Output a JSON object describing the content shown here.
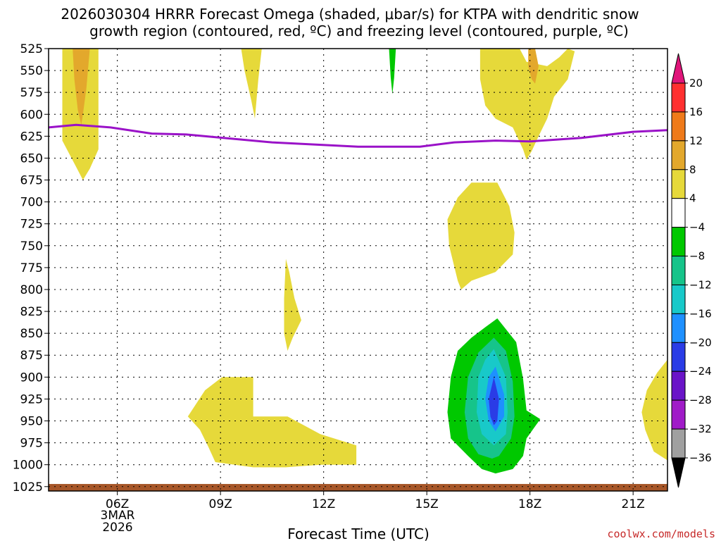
{
  "chart_data": {
    "type": "time-height contour",
    "title_line1": "2026030304 HRRR Forecast Omega (shaded, μbar/s) for KTPA with dendritic snow",
    "title_line2": "growth region (contoured, red, ºC) and freezing level (contoured, purple, ºC)",
    "xlabel": "Forecast Time (UTC)",
    "date_label": [
      "3MAR",
      "2026"
    ],
    "credit": "coolwx.com/models",
    "xlim": [
      4,
      22
    ],
    "ylim": [
      1030,
      525
    ],
    "y_ticks": [
      525,
      550,
      575,
      600,
      625,
      650,
      675,
      700,
      725,
      750,
      775,
      800,
      825,
      850,
      875,
      900,
      925,
      950,
      975,
      1000,
      1025
    ],
    "x_ticks": [
      {
        "value": 6,
        "label": "06Z"
      },
      {
        "value": 9,
        "label": "09Z"
      },
      {
        "value": 12,
        "label": "12Z"
      },
      {
        "value": 15,
        "label": "15Z"
      },
      {
        "value": 18,
        "label": "18Z"
      },
      {
        "value": 21,
        "label": "21Z"
      }
    ],
    "colorbar": {
      "labels": [
        20,
        16,
        12,
        8,
        4,
        -4,
        -8,
        -12,
        -16,
        -20,
        -24,
        -28,
        -32,
        -36
      ],
      "bands": [
        {
          "color": "#ff3030",
          "range": [
            16,
            20
          ]
        },
        {
          "color": "#ef7a1a",
          "range": [
            12,
            16
          ]
        },
        {
          "color": "#e3a82c",
          "range": [
            8,
            12
          ]
        },
        {
          "color": "#e6d93a",
          "range": [
            4,
            8
          ]
        },
        {
          "color": "#ffffff",
          "range": [
            -4,
            4
          ]
        },
        {
          "color": "#00c800",
          "range": [
            -8,
            -4
          ]
        },
        {
          "color": "#16c48a",
          "range": [
            -12,
            -8
          ]
        },
        {
          "color": "#18c9c9",
          "range": [
            -16,
            -12
          ]
        },
        {
          "color": "#1e90ff",
          "range": [
            -20,
            -16
          ]
        },
        {
          "color": "#2a3ce6",
          "range": [
            -24,
            -20
          ]
        },
        {
          "color": "#6a14c8",
          "range": [
            -28,
            -24
          ]
        },
        {
          "color": "#a01bc8",
          "range": [
            -32,
            -28
          ]
        },
        {
          "color": "#a0a0a0",
          "range": [
            -36,
            -32
          ]
        }
      ],
      "top_arrow_color": "#e0157a",
      "bottom_arrow_color": "#000000"
    },
    "freezing_level": {
      "color": "#9a12c8",
      "points": [
        [
          4.0,
          615
        ],
        [
          4.8,
          612
        ],
        [
          5.8,
          615
        ],
        [
          7.0,
          622
        ],
        [
          8.0,
          623
        ],
        [
          10.5,
          632
        ],
        [
          13.0,
          637
        ],
        [
          14.8,
          637
        ],
        [
          15.8,
          632
        ],
        [
          17.0,
          630
        ],
        [
          18.0,
          631
        ],
        [
          19.5,
          627
        ],
        [
          21.0,
          620
        ],
        [
          22.0,
          618
        ]
      ]
    },
    "surface_band": {
      "color": "#a65628",
      "top": 1022,
      "bottom": 1030
    },
    "shaded_regions": [
      {
        "value": 4,
        "color": "#e6d93a",
        "points": [
          [
            4.4,
            525
          ],
          [
            5.45,
            525
          ],
          [
            5.45,
            640
          ],
          [
            5.2,
            662
          ],
          [
            5.0,
            675
          ],
          [
            4.8,
            660
          ],
          [
            4.4,
            630
          ]
        ]
      },
      {
        "value": 8,
        "color": "#e3a82c",
        "points": [
          [
            4.7,
            525
          ],
          [
            5.2,
            525
          ],
          [
            5.1,
            570
          ],
          [
            5.0,
            600
          ],
          [
            4.95,
            612
          ],
          [
            4.85,
            595
          ],
          [
            4.75,
            560
          ]
        ]
      },
      {
        "value": 4,
        "color": "#e6d93a",
        "points": [
          [
            9.6,
            525
          ],
          [
            10.2,
            525
          ],
          [
            10.1,
            560
          ],
          [
            10.0,
            605
          ],
          [
            9.9,
            585
          ],
          [
            9.7,
            550
          ]
        ]
      },
      {
        "value": -4,
        "color": "#00c800",
        "points": [
          [
            13.9,
            525
          ],
          [
            14.1,
            525
          ],
          [
            14.05,
            558
          ],
          [
            14.0,
            577
          ],
          [
            13.95,
            558
          ]
        ]
      },
      {
        "value": 4,
        "color": "#e6d93a",
        "points": [
          [
            16.55,
            525
          ],
          [
            17.7,
            525
          ],
          [
            17.9,
            540
          ],
          [
            18.5,
            545
          ],
          [
            18.85,
            535
          ],
          [
            19.1,
            525
          ],
          [
            19.3,
            528
          ],
          [
            19.1,
            560
          ],
          [
            18.7,
            580
          ],
          [
            18.5,
            605
          ],
          [
            18.25,
            625
          ],
          [
            18.05,
            642
          ],
          [
            17.9,
            652
          ],
          [
            17.8,
            640
          ],
          [
            17.5,
            615
          ],
          [
            17.0,
            605
          ],
          [
            16.7,
            590
          ],
          [
            16.55,
            560
          ]
        ]
      },
      {
        "value": 8,
        "color": "#e3a82c",
        "points": [
          [
            17.95,
            525
          ],
          [
            18.15,
            525
          ],
          [
            18.25,
            545
          ],
          [
            18.15,
            565
          ],
          [
            18.05,
            560
          ],
          [
            17.95,
            545
          ]
        ]
      },
      {
        "value": 4,
        "color": "#e6d93a",
        "points": [
          [
            16.3,
            678
          ],
          [
            17.05,
            678
          ],
          [
            17.4,
            705
          ],
          [
            17.55,
            735
          ],
          [
            17.5,
            760
          ],
          [
            17.0,
            780
          ],
          [
            16.3,
            790
          ],
          [
            16.0,
            800
          ],
          [
            15.9,
            790
          ],
          [
            15.65,
            750
          ],
          [
            15.6,
            720
          ],
          [
            15.9,
            695
          ]
        ]
      },
      {
        "value": 4,
        "color": "#e6d93a",
        "points": [
          [
            10.9,
            765
          ],
          [
            11.0,
            780
          ],
          [
            11.15,
            810
          ],
          [
            11.35,
            835
          ],
          [
            11.1,
            855
          ],
          [
            10.95,
            870
          ],
          [
            10.85,
            850
          ],
          [
            10.85,
            810
          ]
        ]
      },
      {
        "value": 4,
        "color": "#e6d93a",
        "points": [
          [
            8.05,
            945
          ],
          [
            8.55,
            915
          ],
          [
            9.05,
            900
          ],
          [
            9.95,
            900
          ],
          [
            9.95,
            945
          ],
          [
            10.95,
            945
          ],
          [
            11.9,
            965
          ],
          [
            12.95,
            978
          ],
          [
            12.95,
            1000
          ],
          [
            11.9,
            1000
          ],
          [
            10.9,
            1003
          ],
          [
            9.95,
            1003
          ],
          [
            8.85,
            997
          ],
          [
            8.65,
            980
          ],
          [
            8.4,
            960
          ]
        ]
      },
      {
        "value": -4,
        "color": "#00c800",
        "points": [
          [
            17.05,
            833
          ],
          [
            17.6,
            860
          ],
          [
            17.8,
            902
          ],
          [
            17.9,
            938
          ],
          [
            18.3,
            948
          ],
          [
            17.9,
            970
          ],
          [
            17.8,
            990
          ],
          [
            17.5,
            1005
          ],
          [
            17.0,
            1010
          ],
          [
            16.6,
            1005
          ],
          [
            16.2,
            990
          ],
          [
            15.7,
            970
          ],
          [
            15.6,
            940
          ],
          [
            15.7,
            900
          ],
          [
            15.9,
            870
          ],
          [
            16.3,
            855
          ],
          [
            16.7,
            843
          ]
        ]
      },
      {
        "value": -8,
        "color": "#16c48a",
        "points": [
          [
            16.95,
            855
          ],
          [
            17.3,
            870
          ],
          [
            17.5,
            905
          ],
          [
            17.55,
            945
          ],
          [
            17.45,
            970
          ],
          [
            17.1,
            990
          ],
          [
            16.9,
            993
          ],
          [
            16.5,
            988
          ],
          [
            16.2,
            970
          ],
          [
            16.1,
            940
          ],
          [
            16.2,
            900
          ],
          [
            16.5,
            872
          ]
        ]
      },
      {
        "value": -12,
        "color": "#18c9c9",
        "points": [
          [
            16.95,
            868
          ],
          [
            17.3,
            900
          ],
          [
            17.35,
            940
          ],
          [
            17.3,
            965
          ],
          [
            16.95,
            978
          ],
          [
            16.6,
            965
          ],
          [
            16.45,
            940
          ],
          [
            16.5,
            900
          ],
          [
            16.7,
            880
          ]
        ]
      },
      {
        "value": -16,
        "color": "#1e90ff",
        "points": [
          [
            17.0,
            888
          ],
          [
            17.25,
            920
          ],
          [
            17.25,
            945
          ],
          [
            17.0,
            962
          ],
          [
            16.8,
            950
          ],
          [
            16.7,
            925
          ],
          [
            16.8,
            900
          ]
        ]
      },
      {
        "value": -20,
        "color": "#2a3ce6",
        "points": [
          [
            16.95,
            900
          ],
          [
            17.1,
            925
          ],
          [
            17.05,
            950
          ],
          [
            16.95,
            955
          ],
          [
            16.85,
            945
          ],
          [
            16.8,
            925
          ]
        ]
      },
      {
        "value": 4,
        "color": "#e6d93a",
        "points": [
          [
            22.0,
            880
          ],
          [
            22.0,
            995
          ],
          [
            21.6,
            985
          ],
          [
            21.35,
            960
          ],
          [
            21.25,
            940
          ],
          [
            21.4,
            915
          ],
          [
            21.7,
            895
          ]
        ]
      }
    ]
  }
}
